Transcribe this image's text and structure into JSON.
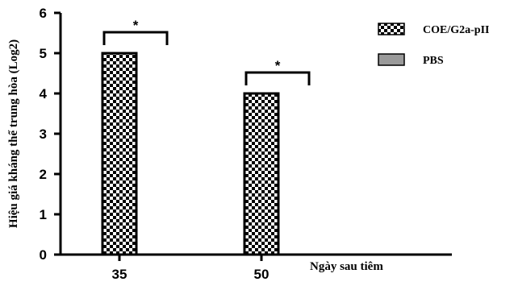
{
  "chart_data": {
    "type": "bar",
    "title": "",
    "xlabel": "Ngày sau tiêm",
    "ylabel": "Hiệu giá kháng thể trung hòa (Log2)",
    "categories": [
      "35",
      "50"
    ],
    "series": [
      {
        "name": "COE/G2a-pII",
        "values": [
          5,
          4
        ],
        "pattern": "checkerboard",
        "color": "#000000"
      },
      {
        "name": "PBS",
        "values": [
          0,
          0
        ],
        "pattern": "solid",
        "color": "#9a9a9a"
      }
    ],
    "ylim": [
      0,
      6
    ],
    "yticks": [
      "0",
      "1",
      "2",
      "3",
      "4",
      "5",
      "6"
    ],
    "significance": [
      {
        "category": "35",
        "label": "*"
      },
      {
        "category": "50",
        "label": "*"
      }
    ],
    "legend_position": "top-right",
    "grid": false
  }
}
